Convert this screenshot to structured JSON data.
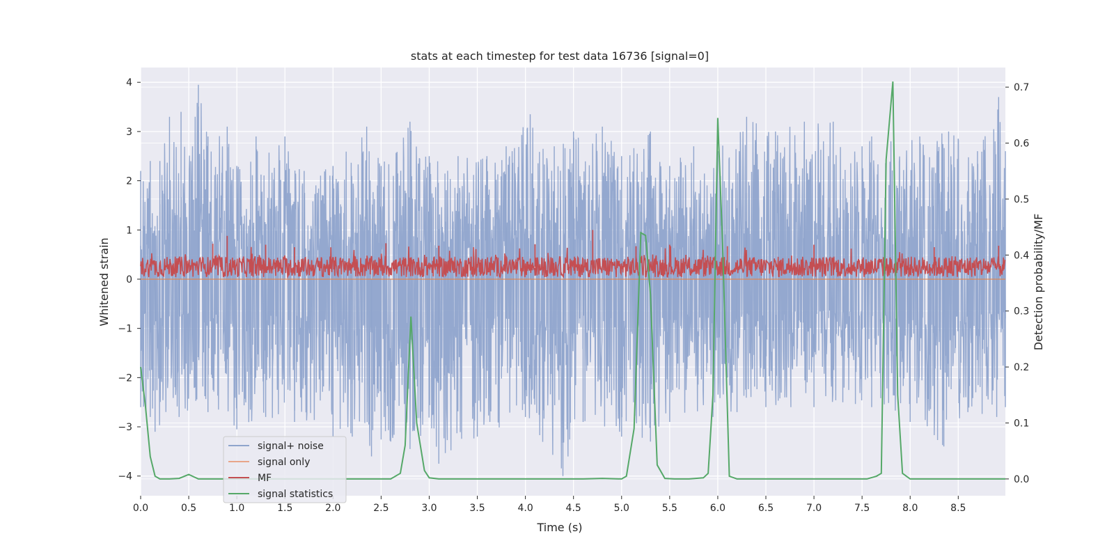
{
  "chart_data": {
    "type": "line",
    "title": "stats at each timestep for test data 16736 [signal=0]",
    "xlabel": "Time (s)",
    "ylabel_left": "Whitened strain",
    "ylabel_right": "Detection probability/MF",
    "xlim": [
      0.0,
      8.99
    ],
    "ylim_left": [
      -4.4,
      4.3
    ],
    "ylim_right": [
      -0.03,
      0.735
    ],
    "x_ticks": [
      0.0,
      0.5,
      1.0,
      1.5,
      2.0,
      2.5,
      3.0,
      3.5,
      4.0,
      4.5,
      5.0,
      5.5,
      6.0,
      6.5,
      7.0,
      7.5,
      8.0,
      8.5
    ],
    "x_tick_labels": [
      "0.0",
      "0.5",
      "1.0",
      "1.5",
      "2.0",
      "2.5",
      "3.0",
      "3.5",
      "4.0",
      "4.5",
      "5.0",
      "5.5",
      "6.0",
      "6.5",
      "7.0",
      "7.5",
      "8.0",
      "8.5"
    ],
    "y_left_ticks": [
      -4,
      -3,
      -2,
      -1,
      0,
      1,
      2,
      3,
      4
    ],
    "y_left_tick_labels": [
      "−4",
      "−3",
      "−2",
      "−1",
      "0",
      "1",
      "2",
      "3",
      "4"
    ],
    "y_right_ticks": [
      0.0,
      0.1,
      0.2,
      0.3,
      0.4,
      0.5,
      0.6,
      0.7
    ],
    "y_right_tick_labels": [
      "0.0",
      "0.1",
      "0.2",
      "0.3",
      "0.4",
      "0.5",
      "0.6",
      "0.7"
    ],
    "grid": true,
    "legend_position": "lower-left",
    "series": [
      {
        "name": "signal+ noise",
        "axis": "left",
        "color": "#8fa4cc",
        "noise_description": "dense whitened strain noise",
        "envelope_upper": [
          [
            0.0,
            2.2
          ],
          [
            0.1,
            2.4
          ],
          [
            0.2,
            2.4
          ],
          [
            0.3,
            3.3
          ],
          [
            0.42,
            3.4
          ],
          [
            0.6,
            3.95
          ],
          [
            0.7,
            2.9
          ],
          [
            0.9,
            3.1
          ],
          [
            1.0,
            2.3
          ],
          [
            1.2,
            2.9
          ],
          [
            1.5,
            2.9
          ],
          [
            1.7,
            2.2
          ],
          [
            2.0,
            2.3
          ],
          [
            2.35,
            3.1
          ],
          [
            2.5,
            2.3
          ],
          [
            2.8,
            3.2
          ],
          [
            3.0,
            2.5
          ],
          [
            3.3,
            2.5
          ],
          [
            3.6,
            2.5
          ],
          [
            3.8,
            2.7
          ],
          [
            4.05,
            3.35
          ],
          [
            4.3,
            2.7
          ],
          [
            4.5,
            3.0
          ],
          [
            4.8,
            3.1
          ],
          [
            5.0,
            2.5
          ],
          [
            5.3,
            3.0
          ],
          [
            5.5,
            2.3
          ],
          [
            5.75,
            2.7
          ],
          [
            6.0,
            2.6
          ],
          [
            6.3,
            3.3
          ],
          [
            6.6,
            3.0
          ],
          [
            6.9,
            3.2
          ],
          [
            7.2,
            3.2
          ],
          [
            7.5,
            2.7
          ],
          [
            7.6,
            2.9
          ],
          [
            7.8,
            2.8
          ],
          [
            8.1,
            2.9
          ],
          [
            8.4,
            3.0
          ],
          [
            8.7,
            2.6
          ],
          [
            8.92,
            3.7
          ],
          [
            8.99,
            2.6
          ]
        ],
        "envelope_lower": [
          [
            0.0,
            -2.6
          ],
          [
            0.1,
            -2.8
          ],
          [
            0.15,
            -3.1
          ],
          [
            0.4,
            -2.8
          ],
          [
            0.7,
            -2.7
          ],
          [
            1.0,
            -3.05
          ],
          [
            1.3,
            -2.8
          ],
          [
            1.6,
            -2.9
          ],
          [
            2.0,
            -3.2
          ],
          [
            2.2,
            -3.2
          ],
          [
            2.4,
            -3.6
          ],
          [
            2.6,
            -3.3
          ],
          [
            3.1,
            -3.75
          ],
          [
            3.5,
            -3.2
          ],
          [
            4.0,
            -2.8
          ],
          [
            4.39,
            -4.0
          ],
          [
            4.6,
            -2.9
          ],
          [
            5.0,
            -3.2
          ],
          [
            5.3,
            -3.3
          ],
          [
            5.5,
            -2.9
          ],
          [
            5.95,
            -2.8
          ],
          [
            6.2,
            -2.7
          ],
          [
            6.5,
            -2.6
          ],
          [
            7.0,
            -2.6
          ],
          [
            7.3,
            -2.5
          ],
          [
            7.6,
            -2.6
          ],
          [
            8.0,
            -2.9
          ],
          [
            8.35,
            -3.4
          ],
          [
            8.6,
            -2.7
          ],
          [
            8.9,
            -2.8
          ],
          [
            8.99,
            -2.6
          ]
        ]
      },
      {
        "name": "signal only",
        "axis": "left",
        "color": "#dd8452",
        "x": [
          0.0,
          8.99
        ],
        "y": [
          0.0,
          0.0
        ]
      },
      {
        "name": "MF",
        "axis": "left",
        "color": "#c44e52",
        "baseline": 0.25,
        "spikes": [
          [
            0.75,
            0.72
          ],
          [
            0.9,
            0.88
          ],
          [
            1.3,
            0.7
          ],
          [
            1.6,
            0.65
          ],
          [
            2.55,
            0.73
          ],
          [
            3.1,
            0.68
          ],
          [
            4.1,
            0.71
          ],
          [
            4.7,
            1.0
          ],
          [
            5.15,
            0.67
          ],
          [
            5.5,
            0.7
          ],
          [
            6.1,
            0.67
          ],
          [
            7.0,
            0.7
          ],
          [
            8.25,
            0.65
          ],
          [
            8.92,
            0.68
          ]
        ]
      },
      {
        "name": "signal statistics",
        "axis": "right",
        "color": "#55a868",
        "x": [
          0.0,
          0.05,
          0.1,
          0.15,
          0.2,
          0.3,
          0.4,
          0.5,
          0.6,
          0.7,
          0.8,
          0.9,
          1.0,
          1.2,
          1.4,
          1.6,
          1.8,
          2.0,
          2.2,
          2.4,
          2.6,
          2.7,
          2.75,
          2.81,
          2.87,
          2.95,
          3.0,
          3.1,
          3.2,
          3.4,
          3.6,
          3.8,
          4.0,
          4.2,
          4.4,
          4.6,
          4.8,
          5.0,
          5.05,
          5.13,
          5.2,
          5.25,
          5.3,
          5.37,
          5.45,
          5.55,
          5.7,
          5.85,
          5.9,
          5.95,
          6.0,
          6.05,
          6.12,
          6.2,
          6.4,
          6.6,
          6.8,
          7.0,
          7.2,
          7.4,
          7.55,
          7.65,
          7.7,
          7.75,
          7.82,
          7.87,
          7.92,
          8.0,
          8.2,
          8.5,
          8.8,
          8.99
        ],
        "y": [
          0.2,
          0.13,
          0.04,
          0.005,
          0.0,
          0.0,
          0.001,
          0.008,
          0.0,
          0.0,
          0.0,
          0.0,
          0.0,
          0.0,
          0.0,
          0.0,
          0.0,
          0.0,
          0.0,
          0.0,
          0.0,
          0.01,
          0.06,
          0.29,
          0.1,
          0.015,
          0.002,
          0.0,
          0.0,
          0.0,
          0.0,
          0.0,
          0.0,
          0.0,
          0.0,
          0.0,
          0.001,
          0.0,
          0.005,
          0.09,
          0.44,
          0.435,
          0.33,
          0.025,
          0.001,
          0.0,
          0.0,
          0.002,
          0.01,
          0.15,
          0.645,
          0.42,
          0.005,
          0.0,
          0.0,
          0.0,
          0.0,
          0.0,
          0.0,
          0.0,
          0.0,
          0.005,
          0.01,
          0.57,
          0.71,
          0.15,
          0.01,
          0.0,
          0.0,
          0.0,
          0.0,
          0.0
        ]
      }
    ]
  }
}
